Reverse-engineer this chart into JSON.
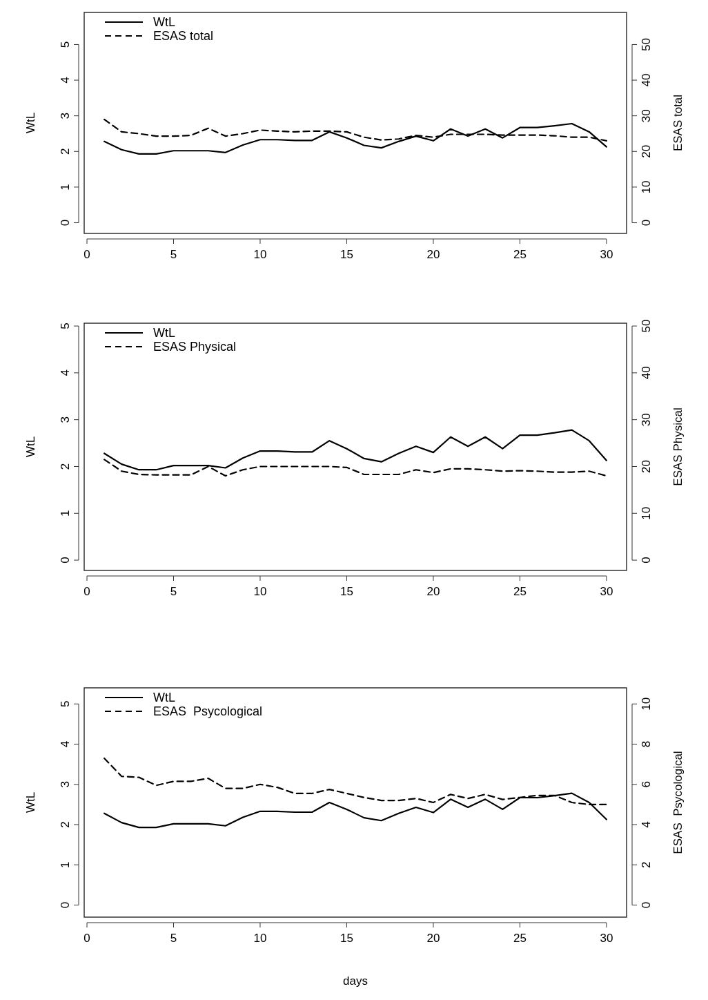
{
  "chart_data": [
    {
      "type": "line",
      "ylabel": "WtL",
      "y2label": "ESAS total",
      "x": [
        1,
        2,
        3,
        4,
        5,
        6,
        7,
        8,
        9,
        10,
        11,
        12,
        13,
        14,
        15,
        16,
        17,
        18,
        19,
        20,
        21,
        22,
        23,
        24,
        25,
        26,
        27,
        28,
        29,
        30
      ],
      "xlim": [
        -0.16,
        31.16
      ],
      "xticks": [
        0,
        5,
        10,
        15,
        20,
        25,
        30
      ],
      "ylim": [
        -0.3,
        5.9
      ],
      "yticks": [
        0,
        1,
        2,
        3,
        4,
        5
      ],
      "y2lim": [
        -3,
        59
      ],
      "y2ticks": [
        0,
        10,
        20,
        30,
        40,
        50
      ],
      "legend": "top left",
      "grid": false,
      "marker": "none",
      "series": [
        {
          "name": "WtL",
          "color": "#000000",
          "line_style": "solid",
          "values": [
            2.28,
            2.05,
            1.93,
            1.93,
            2.02,
            2.02,
            2.02,
            1.97,
            2.18,
            2.33,
            2.33,
            2.31,
            2.31,
            2.55,
            2.38,
            2.17,
            2.1,
            2.28,
            2.43,
            2.3,
            2.63,
            2.43,
            2.63,
            2.38,
            2.67,
            2.67,
            2.72,
            2.78,
            2.55,
            2.13
          ]
        },
        {
          "name": "ESAS total",
          "color": "#000000",
          "line_style": "dashed",
          "axis": "y2",
          "values": [
            29,
            25.5,
            25,
            24.3,
            24.3,
            24.5,
            26.5,
            24.3,
            25,
            26,
            25.7,
            25.5,
            25.7,
            25.7,
            25.5,
            24,
            23.2,
            23.5,
            24.5,
            24,
            24.8,
            24.8,
            24.8,
            24.6,
            24.6,
            24.6,
            24.4,
            24,
            24,
            23
          ]
        }
      ]
    },
    {
      "type": "line",
      "ylabel": "WtL",
      "y2label": "ESAS Physical",
      "x": [
        1,
        2,
        3,
        4,
        5,
        6,
        7,
        8,
        9,
        10,
        11,
        12,
        13,
        14,
        15,
        16,
        17,
        18,
        19,
        20,
        21,
        22,
        23,
        24,
        25,
        26,
        27,
        28,
        29,
        30
      ],
      "xlim": [
        -0.16,
        31.16
      ],
      "xticks": [
        0,
        5,
        10,
        15,
        20,
        25,
        30
      ],
      "ylim": [
        -0.22,
        5.06
      ],
      "yticks": [
        0,
        1,
        2,
        3,
        4,
        5
      ],
      "y2lim": [
        -2.2,
        50.6
      ],
      "y2ticks": [
        0,
        10,
        20,
        30,
        40,
        50
      ],
      "legend": "top left",
      "grid": false,
      "marker": "none",
      "series": [
        {
          "name": "WtL",
          "color": "#000000",
          "line_style": "solid",
          "values": [
            2.28,
            2.05,
            1.93,
            1.93,
            2.02,
            2.02,
            2.02,
            1.97,
            2.18,
            2.33,
            2.33,
            2.31,
            2.31,
            2.55,
            2.38,
            2.17,
            2.1,
            2.28,
            2.43,
            2.3,
            2.63,
            2.43,
            2.63,
            2.38,
            2.67,
            2.67,
            2.72,
            2.78,
            2.55,
            2.13
          ]
        },
        {
          "name": "ESAS Physical",
          "color": "#000000",
          "line_style": "dashed",
          "axis": "y2",
          "values": [
            21.5,
            19,
            18.3,
            18.2,
            18.2,
            18.2,
            20,
            18,
            19.3,
            20,
            20,
            20,
            20,
            20,
            19.8,
            18.3,
            18.3,
            18.3,
            19.3,
            18.7,
            19.5,
            19.5,
            19.3,
            19,
            19.1,
            19,
            18.8,
            18.8,
            19,
            18
          ]
        }
      ]
    },
    {
      "type": "line",
      "ylabel": "WtL",
      "y2label": "ESAS  Psycological",
      "xlabel": "days",
      "x": [
        1,
        2,
        3,
        4,
        5,
        6,
        7,
        8,
        9,
        10,
        11,
        12,
        13,
        14,
        15,
        16,
        17,
        18,
        19,
        20,
        21,
        22,
        23,
        24,
        25,
        26,
        27,
        28,
        29,
        30
      ],
      "xlim": [
        -0.16,
        31.16
      ],
      "xticks": [
        0,
        5,
        10,
        15,
        20,
        25,
        30
      ],
      "ylim": [
        -0.3,
        5.4
      ],
      "yticks": [
        0,
        1,
        2,
        3,
        4,
        5
      ],
      "y2lim": [
        -0.6,
        10.8
      ],
      "y2ticks": [
        0,
        2,
        4,
        6,
        8,
        10
      ],
      "legend": "top left",
      "grid": false,
      "marker": "none",
      "series": [
        {
          "name": "WtL",
          "color": "#000000",
          "line_style": "solid",
          "values": [
            2.28,
            2.05,
            1.93,
            1.93,
            2.02,
            2.02,
            2.02,
            1.97,
            2.18,
            2.33,
            2.33,
            2.31,
            2.31,
            2.55,
            2.38,
            2.17,
            2.1,
            2.28,
            2.43,
            2.3,
            2.63,
            2.43,
            2.63,
            2.38,
            2.67,
            2.67,
            2.72,
            2.78,
            2.55,
            2.13
          ]
        },
        {
          "name": "ESAS  Psycological",
          "color": "#000000",
          "line_style": "dashed",
          "axis": "y2",
          "values": [
            7.3,
            6.4,
            6.35,
            5.95,
            6.15,
            6.15,
            6.3,
            5.8,
            5.8,
            6.0,
            5.85,
            5.55,
            5.55,
            5.75,
            5.55,
            5.35,
            5.2,
            5.2,
            5.3,
            5.1,
            5.5,
            5.3,
            5.5,
            5.25,
            5.35,
            5.45,
            5.45,
            5.1,
            5.0,
            5.0
          ]
        }
      ]
    }
  ]
}
